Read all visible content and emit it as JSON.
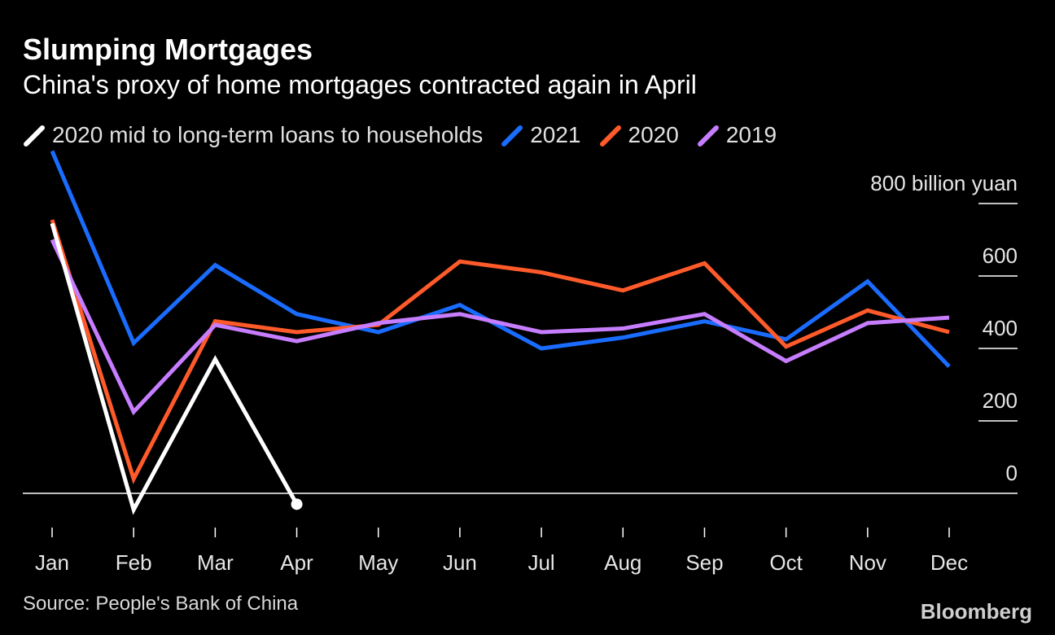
{
  "title": "Slumping Mortgages",
  "subtitle": "China's proxy of home mortgages contracted again in April",
  "source": "Source: People's Bank of China",
  "brand": "Bloomberg",
  "chart_data": {
    "type": "line",
    "title": "Slumping Mortgages",
    "subtitle": "China's proxy of home mortgages contracted again in April",
    "xlabel": "",
    "ylabel": "800 billion yuan",
    "ylim": [
      -120,
      800
    ],
    "yticks": [
      0,
      200,
      400,
      600,
      800
    ],
    "ytick_labels": [
      "0",
      "200",
      "400",
      "600",
      "800 billion yuan"
    ],
    "grid": false,
    "legend_position": "top-left",
    "categories": [
      "Jan",
      "Feb",
      "Mar",
      "Apr",
      "May",
      "Jun",
      "Jul",
      "Aug",
      "Sep",
      "Oct",
      "Nov",
      "Dec"
    ],
    "series": [
      {
        "name": "2020 mid to long-term loans to households",
        "color": "#ffffff",
        "endpoint_marker": true,
        "values": [
          745,
          -45,
          370,
          -30,
          null,
          null,
          null,
          null,
          null,
          null,
          null,
          null
        ]
      },
      {
        "name": "2021",
        "color": "#1a6cff",
        "values": [
          945,
          415,
          630,
          495,
          445,
          520,
          400,
          430,
          475,
          425,
          585,
          350
        ]
      },
      {
        "name": "2020",
        "color": "#ff5a2a",
        "values": [
          755,
          40,
          475,
          445,
          465,
          640,
          610,
          560,
          635,
          405,
          505,
          445
        ]
      },
      {
        "name": "2019",
        "color": "#c77dff",
        "values": [
          700,
          225,
          465,
          420,
          470,
          495,
          445,
          455,
          495,
          365,
          470,
          485
        ]
      }
    ]
  }
}
